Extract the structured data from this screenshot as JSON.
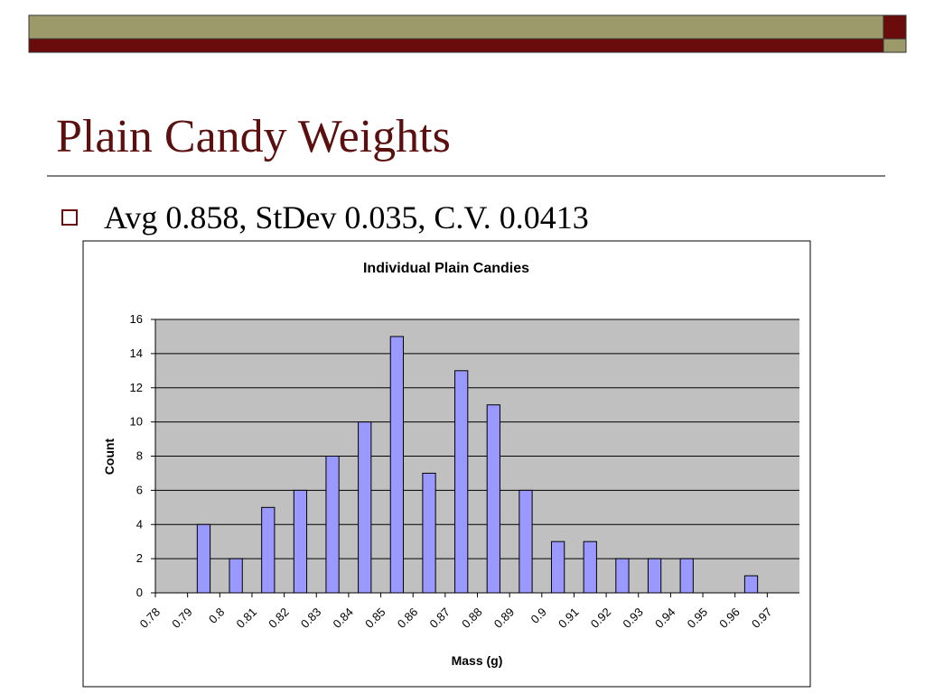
{
  "slide": {
    "title": "Plain Candy Weights",
    "bullets": [
      "Avg 0.858, StDev 0.035, C.V. 0.0413"
    ]
  },
  "chart_data": {
    "type": "histogram",
    "title": "Individual Plain Candies",
    "xlabel": "Mass (g)",
    "ylabel": "Count",
    "bins": [
      0.78,
      0.79,
      0.8,
      0.81,
      0.82,
      0.83,
      0.84,
      0.85,
      0.86,
      0.87,
      0.88,
      0.89,
      0.9,
      0.91,
      0.92,
      0.93,
      0.94,
      0.95,
      0.96,
      0.97
    ],
    "values": [
      0,
      4,
      2,
      5,
      6,
      8,
      10,
      15,
      7,
      13,
      11,
      6,
      3,
      3,
      2,
      2,
      2,
      0,
      1
    ],
    "color": "#9999ff",
    "xlim": [
      0.78,
      0.98
    ],
    "xticks": [
      0.78,
      0.79,
      0.8,
      0.81,
      0.82,
      0.83,
      0.84,
      0.85,
      0.86,
      0.87,
      0.88,
      0.89,
      0.9,
      0.91,
      0.92,
      0.93,
      0.94,
      0.95,
      0.96,
      0.97
    ],
    "ylim": [
      0,
      16
    ],
    "yticks": [
      0,
      2,
      4,
      6,
      8,
      10,
      12,
      14,
      16
    ],
    "grid": true
  }
}
